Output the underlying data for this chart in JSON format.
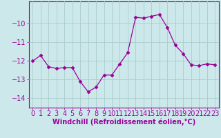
{
  "x": [
    0,
    1,
    2,
    3,
    4,
    5,
    6,
    7,
    8,
    9,
    10,
    11,
    12,
    13,
    14,
    15,
    16,
    17,
    18,
    19,
    20,
    21,
    22,
    23
  ],
  "y": [
    -12.0,
    -11.7,
    -12.3,
    -12.4,
    -12.35,
    -12.35,
    -13.1,
    -13.65,
    -13.4,
    -12.75,
    -12.75,
    -12.15,
    -11.55,
    -9.65,
    -9.7,
    -9.6,
    -9.5,
    -10.2,
    -11.15,
    -11.6,
    -12.2,
    -12.25,
    -12.15,
    -12.2
  ],
  "ylim": [
    -14.5,
    -8.8
  ],
  "yticks": [
    -14,
    -13,
    -12,
    -11,
    -10
  ],
  "xlim": [
    -0.5,
    23.5
  ],
  "line_color": "#990099",
  "marker": "D",
  "marker_size": 2.5,
  "bg_color": "#cce8ea",
  "grid_color": "#aacccc",
  "xlabel": "Windchill (Refroidissement éolien,°C)",
  "xlabel_fontsize": 7,
  "tick_fontsize": 7,
  "label_color": "#990099"
}
